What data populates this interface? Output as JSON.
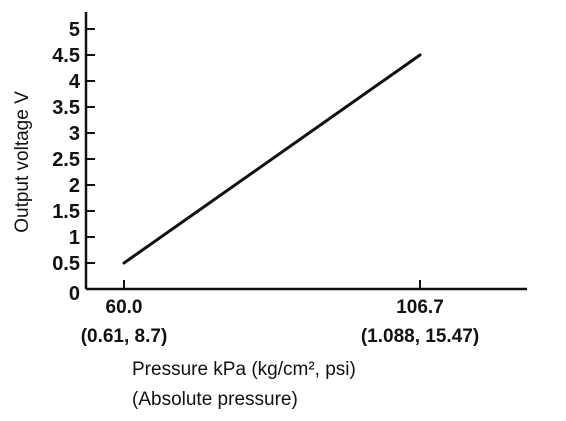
{
  "chart_data": {
    "type": "line",
    "title": "",
    "ylabel": "Output voltage V",
    "xlabel": "Pressure kPa (kg/cm², psi)",
    "xlabel_note": "(Absolute pressure)",
    "x_ticks": [
      {
        "value": 60.0,
        "label": "60.0",
        "sublabel": "(0.61, 8.7)"
      },
      {
        "value": 106.7,
        "label": "106.7",
        "sublabel": "(1.088, 15.47)"
      }
    ],
    "y_ticks": [
      "0",
      "0.5",
      "1",
      "1.5",
      "2",
      "2.5",
      "3",
      "3.5",
      "4",
      "4.5",
      "5"
    ],
    "ylim": [
      0,
      5
    ],
    "xlim": [
      55,
      123
    ],
    "grid": false,
    "series": [
      {
        "x": [
          60.0,
          106.7
        ],
        "y": [
          0.5,
          4.5
        ]
      }
    ]
  },
  "colors": {
    "line": "#111111",
    "axis": "#111111",
    "background": "#ffffff"
  }
}
